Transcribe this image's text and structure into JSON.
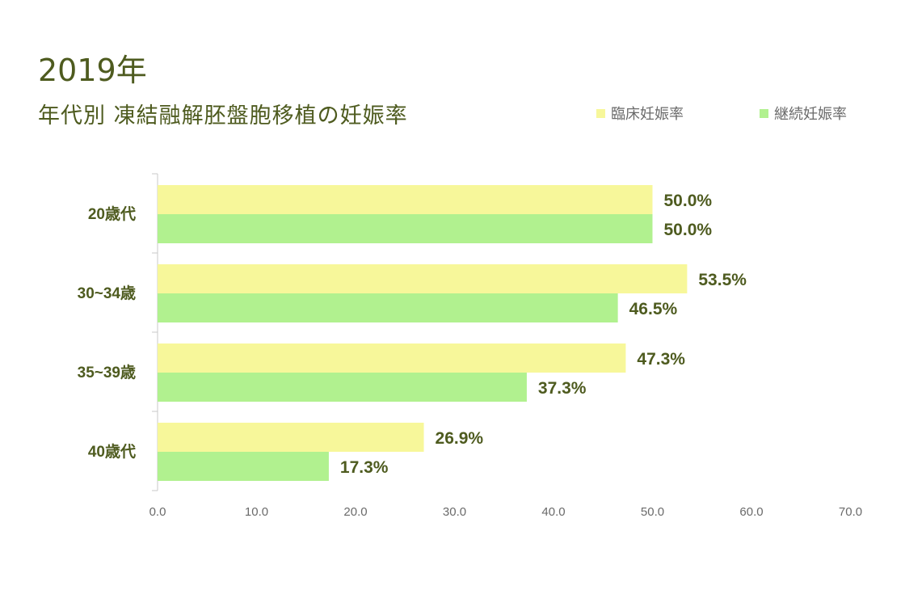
{
  "header": {
    "year": "2019年",
    "title": "年代別 凍結融解胚盤胞移植の妊娠率"
  },
  "colors": {
    "series1": "#f7f79a",
    "series2": "#b1f18f",
    "text": "#4e5b1f",
    "axis": "#c8c8c8",
    "tick": "#6a6a6a"
  },
  "chart_data": {
    "type": "bar",
    "orientation": "horizontal",
    "categories": [
      "20歳代",
      "30~34歳",
      "35~39歳",
      "40歳代"
    ],
    "series": [
      {
        "name": "臨床妊娠率",
        "values": [
          50.0,
          53.5,
          47.3,
          26.9
        ],
        "labels": [
          "50.0%",
          "53.5%",
          "47.3%",
          "26.9%"
        ]
      },
      {
        "name": "継続妊娠率",
        "values": [
          50.0,
          46.5,
          37.3,
          17.3
        ],
        "labels": [
          "50.0%",
          "46.5%",
          "37.3%",
          "17.3%"
        ]
      }
    ],
    "xlim": [
      0,
      70
    ],
    "xticks": [
      "0.0",
      "10.0",
      "20.0",
      "30.0",
      "40.0",
      "50.0",
      "60.0",
      "70.0"
    ],
    "legend": "top-right",
    "grid": false
  }
}
